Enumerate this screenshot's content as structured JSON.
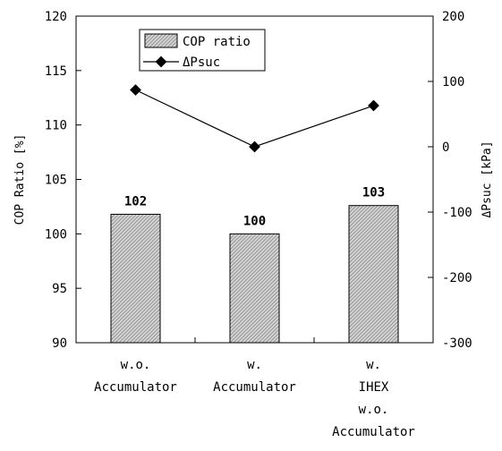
{
  "chart_data": {
    "type": "bar",
    "categories": [
      [
        "w.o.",
        "Accumulator"
      ],
      [
        "w.",
        "Accumulator"
      ],
      [
        "w.",
        "IHEX",
        "w.o.",
        "Accumulator"
      ]
    ],
    "series": [
      {
        "name": "COP ratio",
        "type": "bar",
        "axis": "left",
        "values": [
          101.8,
          100.0,
          102.6
        ],
        "labels": [
          "102",
          "100",
          "103"
        ]
      },
      {
        "name": "ΔPsuc",
        "type": "line",
        "axis": "right",
        "values": [
          87,
          0,
          63
        ]
      }
    ],
    "ylabel": "COP Ratio [%]",
    "ylabel_right": "ΔPsuc [kPa]",
    "ylim": [
      90,
      120
    ],
    "ylim_right": [
      -300,
      200
    ],
    "yticks": [
      "90",
      "95",
      "100",
      "105",
      "110",
      "115",
      "120"
    ],
    "yticks_right": [
      "-300",
      "-200",
      "-100",
      "0",
      "100",
      "200"
    ],
    "legend": "top-center",
    "grid": false,
    "colors": {
      "bar_fill": "#d4d4d4",
      "bar_hatch": "#8a8a8a",
      "line": "#000000"
    }
  }
}
